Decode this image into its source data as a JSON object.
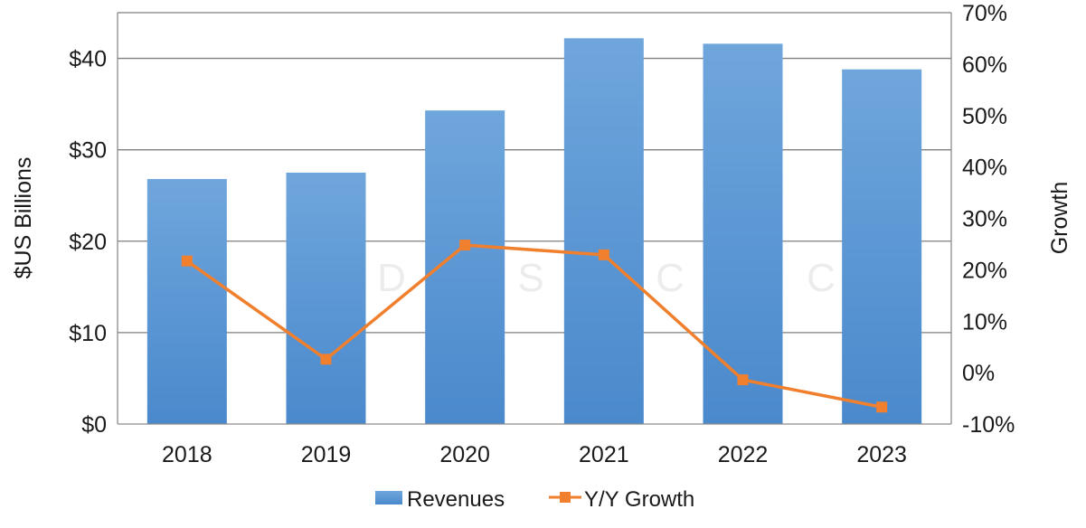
{
  "chart_data": {
    "type": "bar",
    "categories": [
      "2018",
      "2019",
      "2020",
      "2021",
      "2022",
      "2023"
    ],
    "series": [
      {
        "name": "Revenues",
        "type": "bar",
        "axis": "left",
        "values": [
          26.8,
          27.5,
          34.3,
          42.2,
          41.6,
          38.8
        ],
        "color": "#5b9bd5"
      },
      {
        "name": "Y/Y Growth",
        "type": "line",
        "axis": "right",
        "values": [
          21.7,
          2.6,
          24.8,
          22.9,
          -1.4,
          -6.7
        ],
        "color": "#f07f2e"
      }
    ],
    "ylabel": "$US Billions",
    "y2label": "Growth",
    "ylim": [
      0,
      45
    ],
    "y2lim": [
      -10,
      70
    ],
    "yticks": [
      0,
      10,
      20,
      30,
      40
    ],
    "ytick_labels": [
      "$0",
      "$10",
      "$20",
      "$30",
      "$40"
    ],
    "y2ticks": [
      -10,
      0,
      10,
      20,
      30,
      40,
      50,
      60,
      70
    ],
    "y2tick_labels": [
      "-10%",
      "0%",
      "10%",
      "20%",
      "30%",
      "40%",
      "50%",
      "60%",
      "70%"
    ],
    "grid": true,
    "legend_position": "bottom",
    "watermark": "D S C C"
  }
}
